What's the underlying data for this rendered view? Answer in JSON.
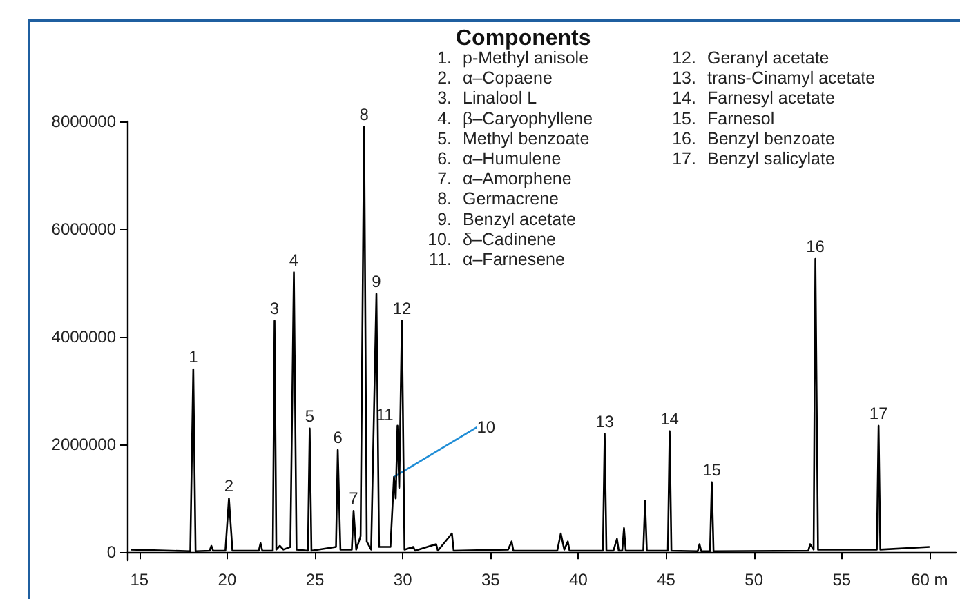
{
  "chart_data": {
    "type": "line",
    "legend_title": "Components",
    "color": "#000000",
    "x": [
      14.5,
      17.9,
      18.07,
      18.2,
      19.0,
      19.1,
      19.2,
      19.9,
      20.1,
      20.3,
      21.8,
      21.9,
      22.0,
      22.6,
      22.7,
      22.8,
      23.0,
      23.2,
      23.6,
      23.8,
      23.95,
      24.6,
      24.7,
      24.8,
      26.2,
      26.3,
      26.45,
      27.1,
      27.2,
      27.35,
      27.6,
      27.8,
      27.95,
      28.2,
      28.5,
      28.65,
      29.3,
      29.5,
      29.6,
      29.7,
      29.8,
      29.95,
      30.1,
      30.6,
      30.7,
      31.9,
      32.0,
      32.8,
      32.9,
      36.0,
      36.2,
      36.3,
      38.8,
      39.0,
      39.2,
      39.4,
      39.5,
      41.4,
      41.5,
      41.6,
      42.0,
      42.2,
      42.3,
      42.5,
      42.6,
      42.7,
      43.7,
      43.8,
      43.9,
      45.1,
      45.2,
      45.3,
      46.8,
      46.9,
      47.0,
      47.5,
      47.6,
      47.7,
      53.1,
      53.2,
      53.4,
      53.5,
      53.65,
      57.0,
      57.1,
      57.2,
      60.0
    ],
    "values": [
      50000,
      20000,
      3400000,
      20000,
      30000,
      120000,
      30000,
      30000,
      1000000,
      30000,
      30000,
      170000,
      30000,
      30000,
      4300000,
      50000,
      120000,
      50000,
      100000,
      5200000,
      50000,
      30000,
      2300000,
      30000,
      100000,
      1900000,
      50000,
      50000,
      770000,
      50000,
      300000,
      7900000,
      200000,
      50000,
      4800000,
      100000,
      100000,
      1400000,
      1000000,
      2350000,
      1200000,
      4300000,
      50000,
      100000,
      30000,
      150000,
      30000,
      350000,
      30000,
      50000,
      200000,
      30000,
      30000,
      350000,
      50000,
      200000,
      30000,
      30000,
      2200000,
      30000,
      30000,
      250000,
      30000,
      30000,
      450000,
      30000,
      30000,
      950000,
      30000,
      30000,
      2250000,
      30000,
      20000,
      150000,
      20000,
      20000,
      1300000,
      20000,
      30000,
      150000,
      50000,
      5450000,
      50000,
      50000,
      2350000,
      50000,
      100000
    ],
    "xlim": [
      14.3,
      61.5
    ],
    "xticks": [
      15,
      20,
      25,
      30,
      35,
      40,
      45,
      50,
      55,
      {
        "value": 60,
        "label": "60 m"
      }
    ],
    "ylim": [
      -150000,
      8000000
    ],
    "yticks": [
      0,
      2000000,
      4000000,
      6000000,
      8000000
    ],
    "grid": false,
    "annotations": [
      {
        "text": "1",
        "x": 18.07,
        "y": 3400000
      },
      {
        "text": "2",
        "x": 20.1,
        "y": 1000000
      },
      {
        "text": "3",
        "x": 22.7,
        "y": 4300000
      },
      {
        "text": "4",
        "x": 23.8,
        "y": 5200000
      },
      {
        "text": "5",
        "x": 24.7,
        "y": 2300000
      },
      {
        "text": "6",
        "x": 26.3,
        "y": 1900000
      },
      {
        "text": "7",
        "x": 27.2,
        "y": 770000
      },
      {
        "text": "8",
        "x": 27.8,
        "y": 7900000
      },
      {
        "text": "9",
        "x": 28.5,
        "y": 4800000
      },
      {
        "text": "10",
        "x": 29.5,
        "y": 1400000
      },
      {
        "text": "11",
        "x": 29.7,
        "y": 2350000
      },
      {
        "text": "12",
        "x": 29.95,
        "y": 4300000
      },
      {
        "text": "13",
        "x": 41.5,
        "y": 2200000
      },
      {
        "text": "14",
        "x": 45.2,
        "y": 2250000
      },
      {
        "text": "15",
        "x": 47.6,
        "y": 1300000
      },
      {
        "text": "16",
        "x": 53.5,
        "y": 5450000
      },
      {
        "text": "17",
        "x": 57.1,
        "y": 2350000
      },
      "1.  p-Methyl anisole",
      "2.  α–Copaene",
      "3.  Linalool L",
      "4.  β–Caryophyllene",
      "5.  Methyl benzoate",
      "6.  α–Humulene",
      "7.  α–Amorphene",
      "8.  Germacrene",
      "9.  Benzyl acetate",
      "10.  δ–Cadinene",
      "11.  α–Farnesene",
      "12.  Geranyl acetate",
      "13.  trans-Cinamyl acetate",
      "14.  Farnesyl acetate",
      "15.  Farnesol",
      "16.  Benzyl benzoate",
      "17.  Benzyl salicylate"
    ]
  }
}
